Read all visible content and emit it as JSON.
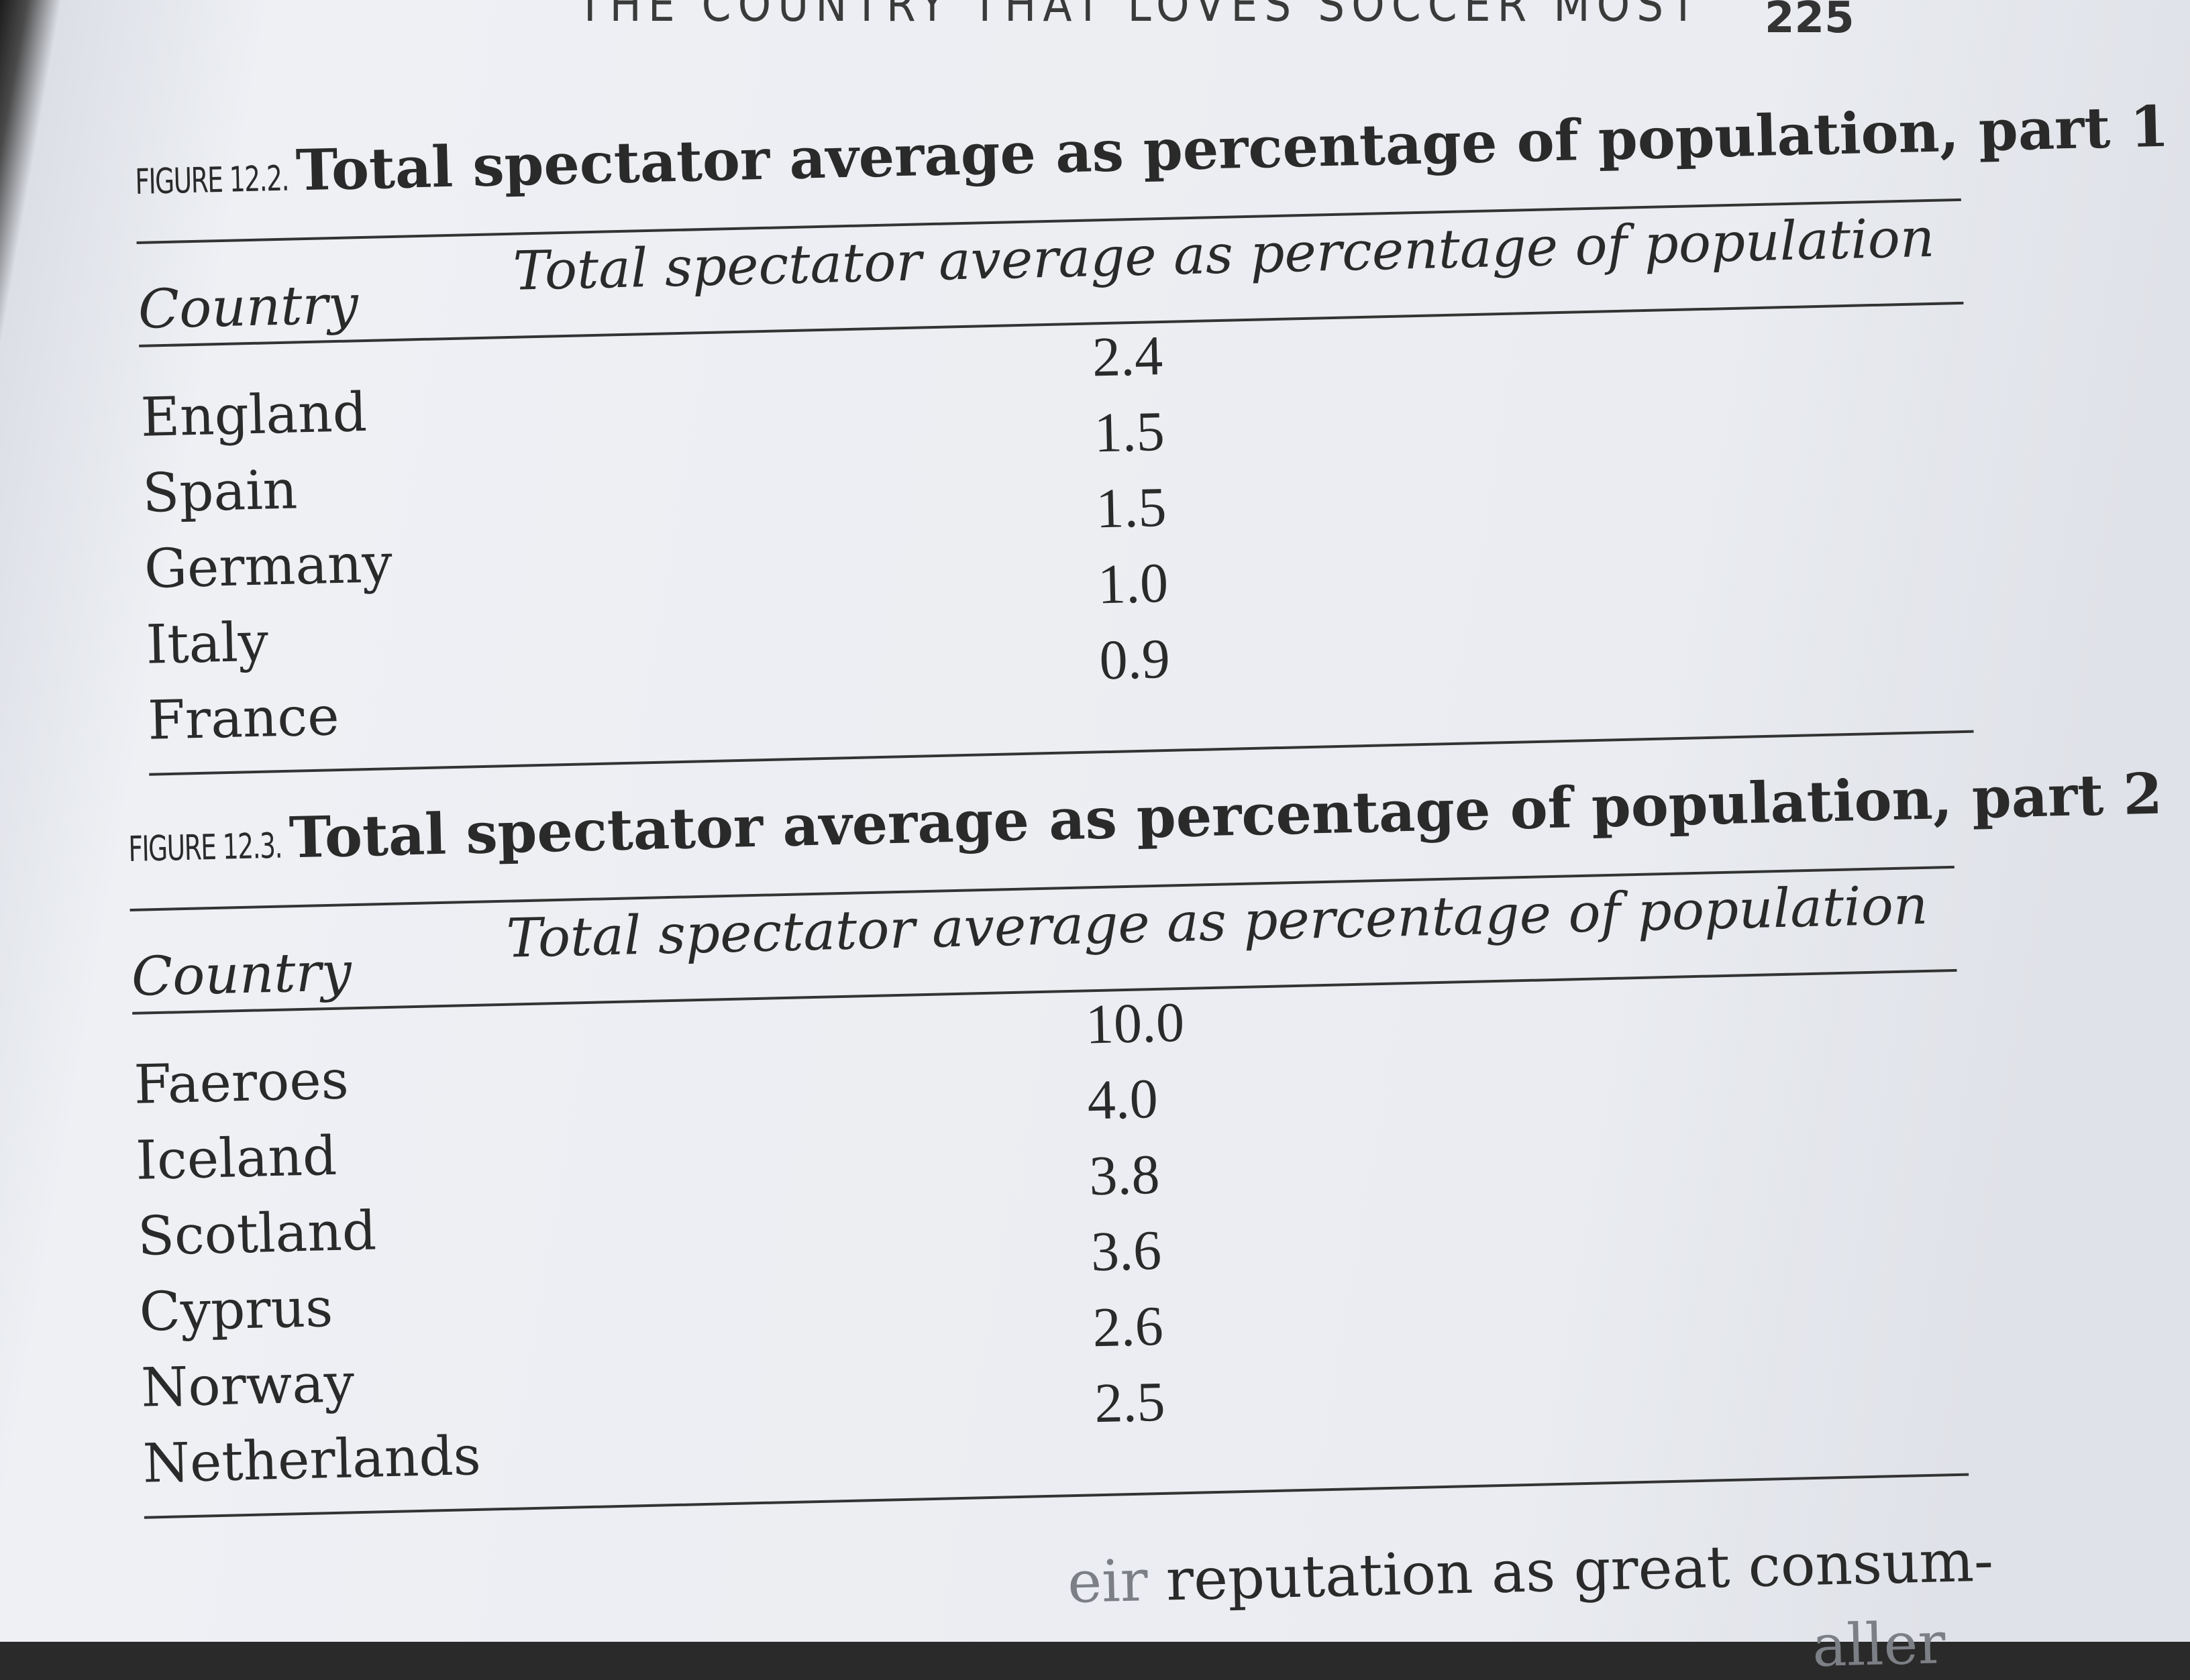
{
  "header": {
    "running_title": "THE COUNTRY THAT LOVES SOCCER MOST",
    "page_number": "225"
  },
  "figures": [
    {
      "label": "FIGURE 12.2.",
      "title": "Total spectator average as percentage of population, part 1",
      "col_country": "Country",
      "col_value": "Total spectator average as percentage of population",
      "rows": [
        {
          "country": "England",
          "value": "2.4"
        },
        {
          "country": "Spain",
          "value": "1.5"
        },
        {
          "country": "Germany",
          "value": "1.5"
        },
        {
          "country": "Italy",
          "value": "1.0"
        },
        {
          "country": "France",
          "value": "0.9"
        }
      ]
    },
    {
      "label": "FIGURE 12.3.",
      "title": "Total spectator average as percentage of population, part 2",
      "col_country": "Country",
      "col_value": "Total spectator average as percentage of population",
      "rows": [
        {
          "country": "Faeroes",
          "value": "10.0"
        },
        {
          "country": "Iceland",
          "value": "4.0"
        },
        {
          "country": "Scotland",
          "value": "3.8"
        },
        {
          "country": "Cyprus",
          "value": "3.6"
        },
        {
          "country": "Norway",
          "value": "2.6"
        },
        {
          "country": "Netherlands",
          "value": "2.5"
        }
      ]
    }
  ],
  "body_text": {
    "partial_left": "eir",
    "line": "reputation as great consum-",
    "partial_next": "aller"
  }
}
